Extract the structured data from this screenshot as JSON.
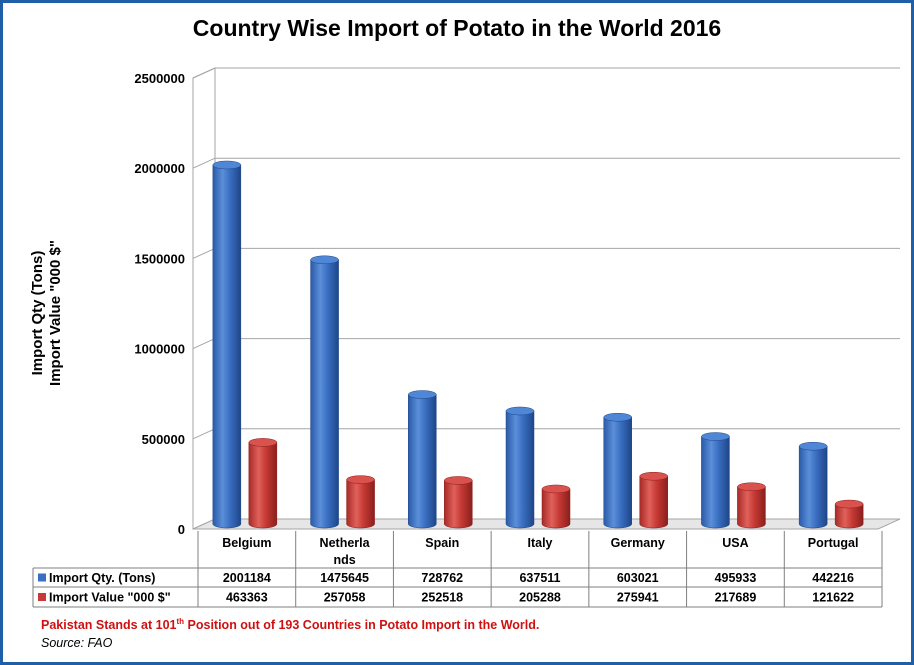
{
  "chart_data": {
    "type": "bar",
    "title": "Country Wise Import of Potato in the World 2016",
    "ylabel": [
      "Import Qty (Tons)",
      "Import Value \"000 $\""
    ],
    "categories": [
      "Belgium",
      "Netherlands",
      "Spain",
      "Italy",
      "Germany",
      "USA",
      "Portugal"
    ],
    "category_display": [
      [
        "Belgium"
      ],
      [
        "Netherla",
        "nds"
      ],
      [
        "Spain"
      ],
      [
        "Italy"
      ],
      [
        "Germany"
      ],
      [
        "USA"
      ],
      [
        "Portugal"
      ]
    ],
    "series": [
      {
        "name": "Import Qty. (Tons)",
        "color": "#3a6fc2",
        "values": [
          2001184,
          1475645,
          728762,
          637511,
          603021,
          495933,
          442216
        ]
      },
      {
        "name": "Import Value \"000 $\"",
        "color": "#c73a35",
        "values": [
          463363,
          257058,
          252518,
          205288,
          275941,
          217689,
          121622
        ]
      }
    ],
    "ylim": [
      0,
      2500000
    ],
    "yticks": [
      0,
      500000,
      1000000,
      1500000,
      2000000,
      2500000
    ],
    "ytick_labels": [
      "0",
      "500000",
      "1000000",
      "1500000",
      "2000000",
      "2500000"
    ],
    "grid": true,
    "legend": "data-table"
  },
  "footnote": {
    "before": "Pakistan Stands at 101",
    "sup": "th",
    "after": " Position out of 193  Countries in Potato Import in the World."
  },
  "source": "Source: FAO"
}
